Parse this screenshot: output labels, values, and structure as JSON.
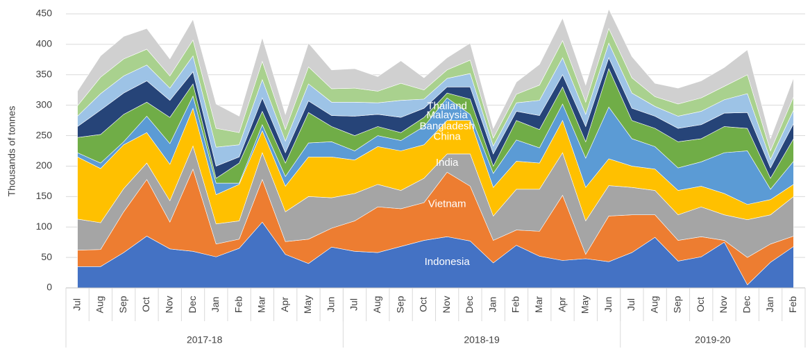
{
  "chart_data": {
    "type": "stacked-area",
    "y_label": "Thousands of tonnes",
    "categories": [
      "Jul",
      "Aug",
      "Sep",
      "Oct",
      "Nov",
      "Dec",
      "Jan",
      "Feb",
      "Mar",
      "Apr",
      "May",
      "Jun",
      "Jul",
      "Aug",
      "Sep",
      "Oct",
      "Nov",
      "Dec",
      "Jan",
      "Feb",
      "Mar",
      "Apr",
      "May",
      "Jun",
      "Jul",
      "Aug",
      "Sep",
      "Oct",
      "Nov",
      "Dec",
      "Jan",
      "Feb"
    ],
    "groups": [
      {
        "name": "2017-18",
        "span": 12
      },
      {
        "name": "2018-19",
        "span": 12
      },
      {
        "name": "2019-20",
        "span": 8
      }
    ],
    "series": [
      {
        "name": "Indonesia",
        "color": "#4472c4",
        "values": [
          35,
          35,
          58,
          85,
          64,
          60,
          51,
          65,
          108,
          55,
          40,
          67,
          60,
          58,
          68,
          78,
          84,
          77,
          41,
          70,
          52,
          45,
          48,
          43,
          58,
          83,
          44,
          51,
          75,
          5,
          42,
          68
        ]
      },
      {
        "name": "Vietnam",
        "color": "#ed7d31",
        "values": [
          27,
          28,
          67,
          93,
          44,
          135,
          21,
          15,
          70,
          21,
          40,
          31,
          50,
          75,
          62,
          62,
          106,
          90,
          37,
          25,
          41,
          107,
          7,
          75,
          62,
          37,
          34,
          33,
          3,
          45,
          30,
          17
        ]
      },
      {
        "name": "India",
        "color": "#a5a5a5",
        "values": [
          51,
          44,
          38,
          27,
          35,
          38,
          33,
          30,
          44,
          49,
          70,
          50,
          45,
          37,
          30,
          40,
          30,
          53,
          40,
          67,
          69,
          70,
          55,
          50,
          45,
          40,
          42,
          49,
          42,
          62,
          48,
          65
        ]
      },
      {
        "name": "China",
        "color": "#ffc000",
        "values": [
          102,
          89,
          72,
          50,
          60,
          62,
          48,
          60,
          36,
          42,
          65,
          67,
          55,
          62,
          65,
          55,
          55,
          55,
          47,
          46,
          43,
          53,
          55,
          44,
          35,
          35,
          40,
          34,
          35,
          25,
          25,
          20
        ]
      },
      {
        "name": "Bangladesh",
        "color": "#5b9bd5",
        "values": [
          7,
          9,
          5,
          27,
          34,
          20,
          19,
          2,
          10,
          16,
          23,
          25,
          15,
          18,
          17,
          30,
          37,
          10,
          23,
          35,
          25,
          27,
          48,
          85,
          45,
          37,
          37,
          40,
          67,
          88,
          17,
          38
        ]
      },
      {
        "name": "Malaysia",
        "color": "#70ad47",
        "values": [
          25,
          47,
          45,
          23,
          43,
          20,
          8,
          33,
          22,
          22,
          50,
          25,
          25,
          15,
          13,
          15,
          8,
          25,
          12,
          32,
          30,
          28,
          27,
          63,
          30,
          30,
          43,
          38,
          43,
          37,
          18,
          37
        ]
      },
      {
        "name": "Thailand",
        "color": "#264478",
        "values": [
          18,
          40,
          35,
          35,
          28,
          20,
          20,
          10,
          22,
          17,
          19,
          18,
          32,
          20,
          25,
          15,
          10,
          20,
          20,
          15,
          23,
          20,
          25,
          18,
          20,
          20,
          22,
          23,
          22,
          26,
          17,
          25
        ]
      },
      {
        "color": "#9dc3e6",
        "values": [
          17,
          27,
          28,
          26,
          20,
          26,
          31,
          20,
          30,
          19,
          28,
          22,
          23,
          19,
          28,
          15,
          14,
          22,
          13,
          14,
          25,
          28,
          20,
          24,
          25,
          16,
          20,
          22,
          22,
          31,
          14,
          22
        ]
      },
      {
        "color": "#a9d18e",
        "values": [
          17,
          27,
          28,
          26,
          20,
          26,
          31,
          20,
          30,
          19,
          28,
          22,
          23,
          19,
          28,
          15,
          14,
          22,
          13,
          14,
          25,
          28,
          20,
          24,
          25,
          16,
          20,
          22,
          22,
          31,
          14,
          22
        ]
      },
      {
        "color": "#d0d0d0",
        "values": [
          24,
          35,
          37,
          34,
          28,
          34,
          40,
          27,
          39,
          25,
          39,
          31,
          32,
          24,
          37,
          20,
          20,
          28,
          16,
          20,
          34,
          37,
          28,
          32,
          35,
          22,
          26,
          28,
          31,
          41,
          20,
          31
        ]
      }
    ],
    "ylim": [
      0,
      450
    ],
    "yticks": [
      0,
      50,
      100,
      150,
      200,
      250,
      300,
      350,
      400,
      450
    ],
    "grid": true
  }
}
